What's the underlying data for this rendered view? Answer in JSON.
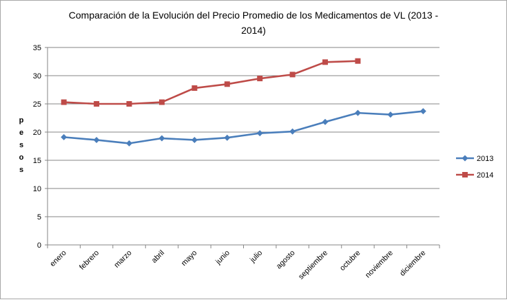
{
  "chart_data": {
    "type": "line",
    "title_lines": [
      "Comparación de la Evolución del Precio Promedio de los Medicamentos de VL (2013 -",
      "2014)"
    ],
    "xlabel": "",
    "ylabel_letters": [
      "p",
      "e",
      "s",
      "o",
      "s"
    ],
    "categories": [
      "enero",
      "febrero",
      "marzo",
      "abril",
      "mayo",
      "junio",
      "julio",
      "agosto",
      "septiembre",
      "octubre",
      "noviembre",
      "diciembre"
    ],
    "ylim": [
      0,
      35
    ],
    "yticks": [
      0,
      5,
      10,
      15,
      20,
      25,
      30,
      35
    ],
    "grid": true,
    "legend_position": "right",
    "series": [
      {
        "name": "2013",
        "color": "#4a7ebb",
        "marker": "diamond",
        "values": [
          19.1,
          18.6,
          18.0,
          18.9,
          18.6,
          19.0,
          19.8,
          20.1,
          21.8,
          23.4,
          23.1,
          23.7
        ]
      },
      {
        "name": "2014",
        "color": "#be4b48",
        "marker": "square",
        "values": [
          25.3,
          25.0,
          25.0,
          25.3,
          27.8,
          28.5,
          29.5,
          30.2,
          32.4,
          32.6,
          null,
          null
        ]
      }
    ]
  }
}
